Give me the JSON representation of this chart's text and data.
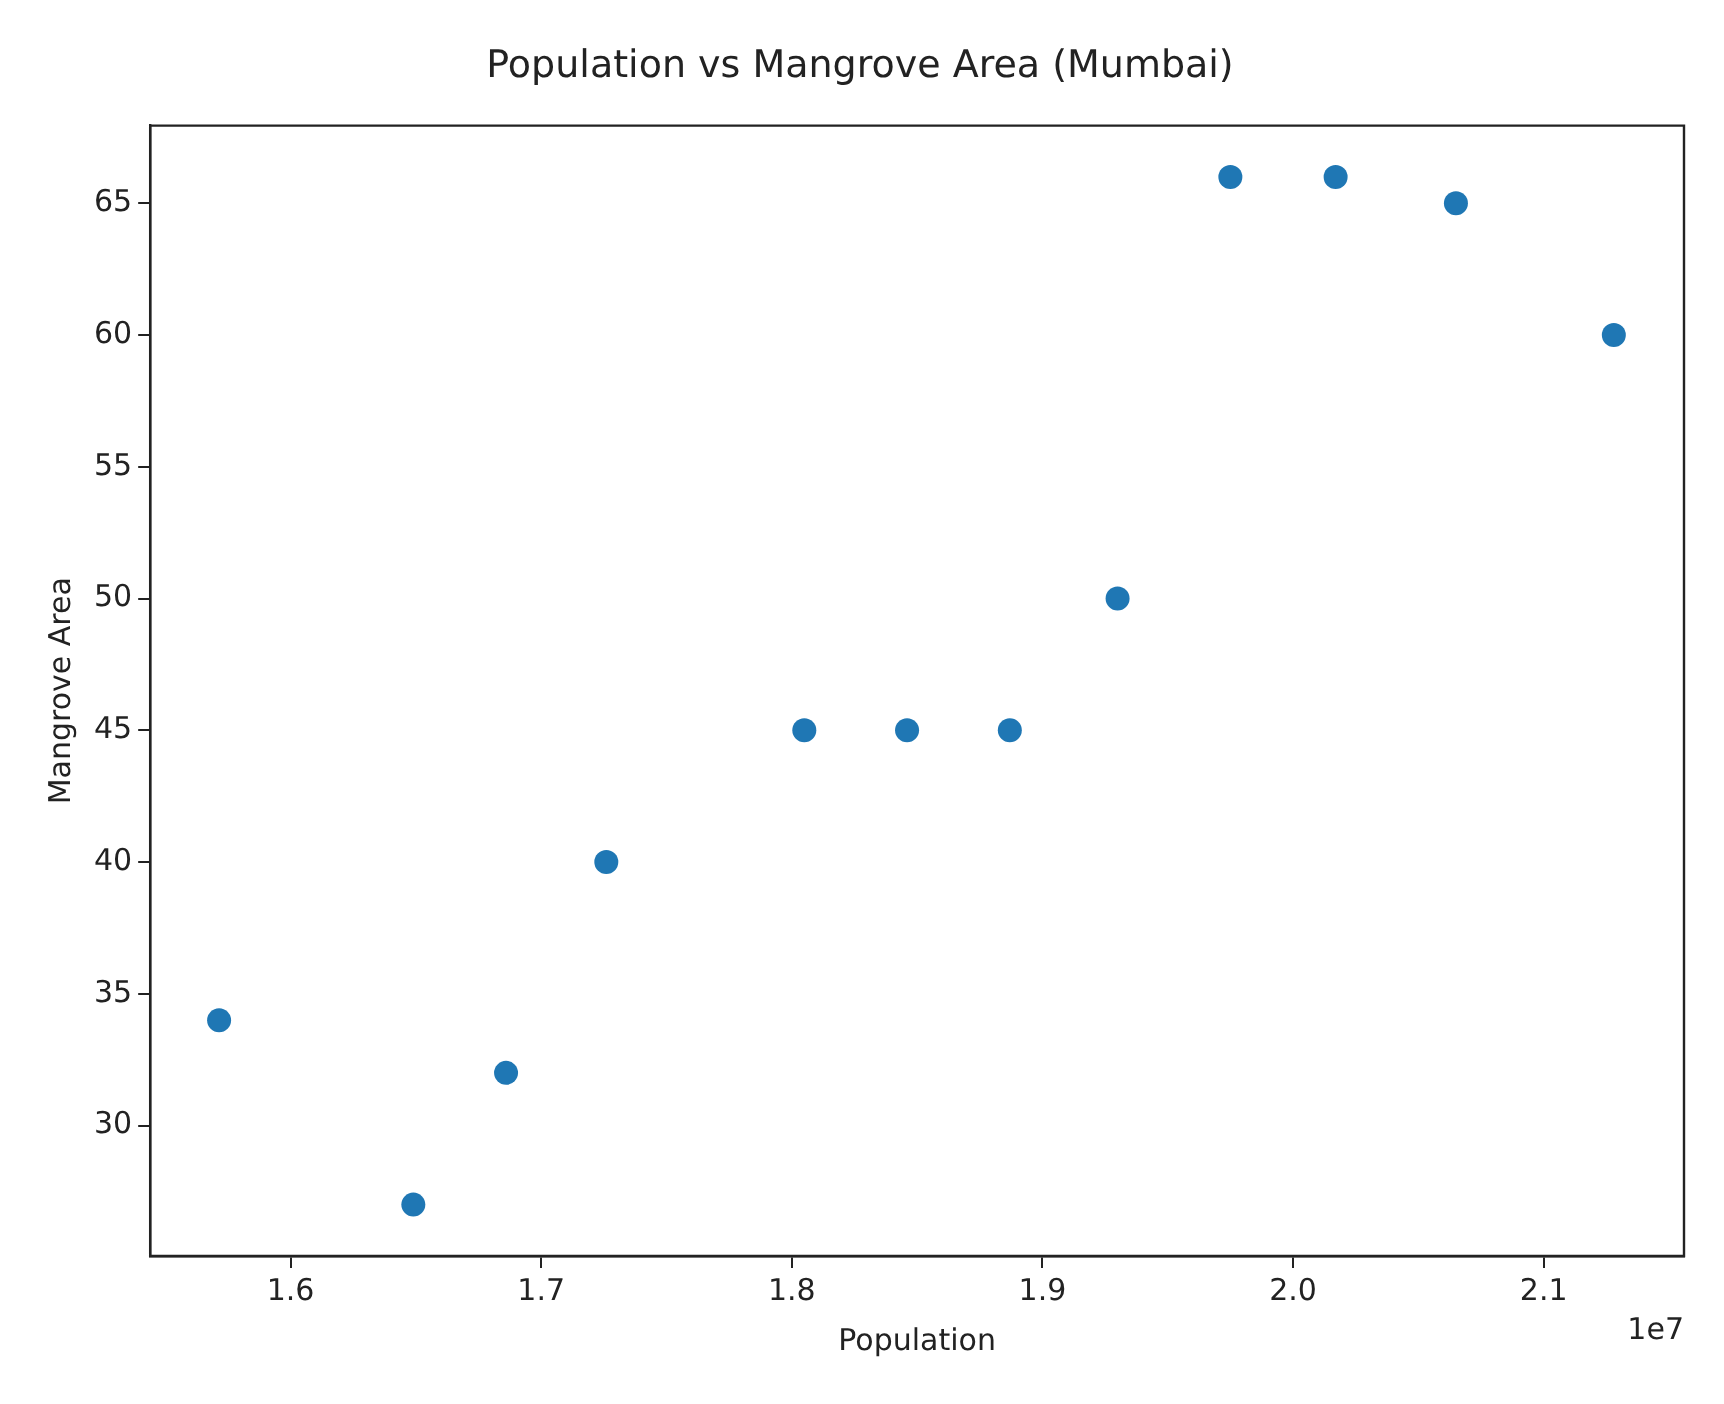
{
  "chart_data": {
    "type": "scatter",
    "title": "Population vs Mangrove Area (Mumbai)",
    "xlabel": "Population",
    "ylabel": "Mangrove Area",
    "annotations": [
      "1e7"
    ],
    "x": [
      1.5715,
      1.649,
      1.686,
      1.726,
      1.805,
      1.846,
      1.887,
      1.93,
      1.975,
      2.017,
      2.065,
      2.128
    ],
    "series": [
      {
        "color": "#1f77b4",
        "values": [
          34,
          27,
          32,
          40,
          45,
          45,
          45,
          50,
          66,
          66,
          65,
          60
        ]
      }
    ],
    "xlim": [
      1.544,
      2.156
    ],
    "xticks": [
      1.6,
      1.7,
      1.8,
      1.9,
      {
        "value": 2,
        "label": "2.0"
      },
      2.1
    ],
    "ylim": [
      25.05,
      67.95
    ],
    "yticks": [
      30,
      35,
      40,
      45,
      50,
      55,
      60,
      65
    ],
    "grid": false,
    "legend": false,
    "marker": "circle"
  }
}
